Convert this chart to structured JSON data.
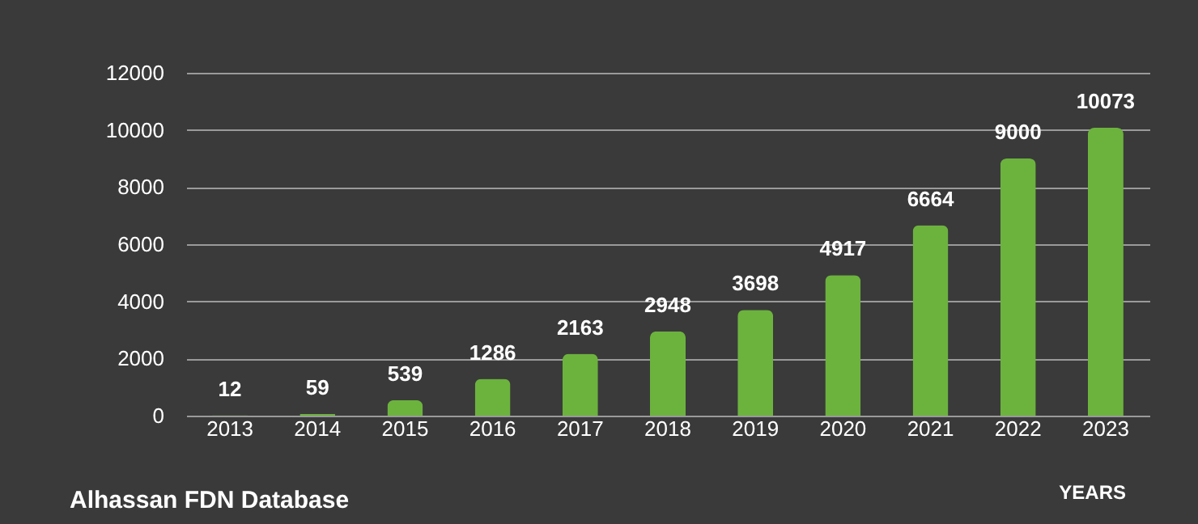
{
  "chart_data": {
    "type": "bar",
    "xlabel": "YEARS",
    "categories": [
      "2013",
      "2014",
      "2015",
      "2016",
      "2017",
      "2018",
      "2019",
      "2020",
      "2021",
      "2022",
      "2023"
    ],
    "values": [
      12,
      59,
      539,
      1286,
      2163,
      2948,
      3698,
      4917,
      6664,
      9000,
      10073
    ],
    "color": "#6cb33e",
    "ylim": [
      0,
      12000
    ],
    "yticks": [
      0,
      2000,
      4000,
      6000,
      8000,
      10000,
      12000
    ],
    "grid": "y",
    "data_labels": true,
    "annotations": [
      "Alhassan FDN Database"
    ]
  }
}
